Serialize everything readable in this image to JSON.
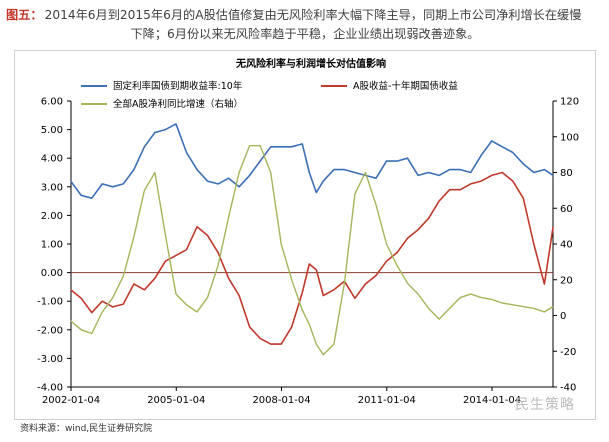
{
  "caption": {
    "label": "图五：",
    "line1": "2014年6月到2015年6月的A股估值修复由无风险利率大幅下降主导，同期上市公司净利增长在缓慢",
    "line2": "下降；6月份以来无风险率趋于平稳，企业业绩出现弱改善迹象。"
  },
  "source_note": "资料来源：wind,民生证券研究院",
  "watermark": "民生策略",
  "colors": {
    "bond_yield": "#3b6fb6",
    "equity_minus_bond": "#c0392b",
    "profit_growth": "#a4b55a",
    "zero_line": "#8a3b2e",
    "axis": "#000000"
  },
  "chart_data": {
    "type": "line",
    "title": "无风险利率与利润增长对估值影响",
    "x_tick_labels": [
      "2002-01-04",
      "2005-01-04",
      "2008-01-04",
      "2011-01-04",
      "2014-01-04"
    ],
    "x_range": [
      "2002-01-04",
      "2015-09-30"
    ],
    "y_left": {
      "min": -4,
      "max": 6,
      "ticks": [
        "-4.00",
        "-3.00",
        "-2.00",
        "-1.00",
        "0.00",
        "1.00",
        "2.00",
        "3.00",
        "4.00",
        "5.00",
        "6.00"
      ]
    },
    "y_right": {
      "min": -40,
      "max": 120,
      "ticks": [
        "-40",
        "-20",
        "0",
        "20",
        "40",
        "60",
        "80",
        "100",
        "120"
      ]
    },
    "legend_position": "top",
    "series": [
      {
        "name": "固定利率国债到期收益率:10年",
        "axis": "left",
        "color": "#3b6fb6",
        "x": [
          2002.0,
          2002.3,
          2002.6,
          2002.9,
          2003.2,
          2003.5,
          2003.8,
          2004.1,
          2004.4,
          2004.7,
          2005.0,
          2005.3,
          2005.6,
          2005.9,
          2006.2,
          2006.5,
          2006.8,
          2007.1,
          2007.4,
          2007.7,
          2008.0,
          2008.3,
          2008.6,
          2008.8,
          2009.0,
          2009.2,
          2009.5,
          2009.8,
          2010.1,
          2010.4,
          2010.7,
          2011.0,
          2011.3,
          2011.6,
          2011.9,
          2012.2,
          2012.5,
          2012.8,
          2013.1,
          2013.4,
          2013.7,
          2014.0,
          2014.3,
          2014.6,
          2014.9,
          2015.2,
          2015.5,
          2015.75
        ],
        "y": [
          3.2,
          2.7,
          2.6,
          3.1,
          3.0,
          3.1,
          3.6,
          4.4,
          4.9,
          5.0,
          5.2,
          4.2,
          3.6,
          3.2,
          3.1,
          3.3,
          3.0,
          3.4,
          3.9,
          4.4,
          4.4,
          4.4,
          4.5,
          3.5,
          2.8,
          3.2,
          3.6,
          3.6,
          3.5,
          3.4,
          3.3,
          3.9,
          3.9,
          4.0,
          3.4,
          3.5,
          3.4,
          3.6,
          3.6,
          3.5,
          4.1,
          4.6,
          4.4,
          4.2,
          3.8,
          3.5,
          3.6,
          3.4
        ]
      },
      {
        "name": "A股收益-十年期国债收益",
        "axis": "left",
        "color": "#c0392b",
        "x": [
          2002.0,
          2002.3,
          2002.6,
          2002.9,
          2003.2,
          2003.5,
          2003.8,
          2004.1,
          2004.4,
          2004.7,
          2005.0,
          2005.3,
          2005.6,
          2005.9,
          2006.2,
          2006.5,
          2006.8,
          2007.1,
          2007.4,
          2007.7,
          2008.0,
          2008.3,
          2008.6,
          2008.8,
          2009.0,
          2009.2,
          2009.5,
          2009.8,
          2010.1,
          2010.4,
          2010.7,
          2011.0,
          2011.3,
          2011.6,
          2011.9,
          2012.2,
          2012.5,
          2012.8,
          2013.1,
          2013.4,
          2013.7,
          2014.0,
          2014.3,
          2014.6,
          2014.9,
          2015.2,
          2015.5,
          2015.75
        ],
        "y": [
          -0.6,
          -0.9,
          -1.4,
          -1.0,
          -1.2,
          -1.1,
          -0.4,
          -0.6,
          -0.2,
          0.4,
          0.6,
          0.8,
          1.6,
          1.3,
          0.7,
          -0.2,
          -0.8,
          -1.9,
          -2.3,
          -2.5,
          -2.5,
          -1.9,
          -0.7,
          0.3,
          0.1,
          -0.8,
          -0.6,
          -0.3,
          -0.9,
          -0.4,
          -0.1,
          0.4,
          0.7,
          1.2,
          1.5,
          1.9,
          2.5,
          2.9,
          2.9,
          3.1,
          3.2,
          3.4,
          3.5,
          3.2,
          2.6,
          1.0,
          -0.4,
          1.6
        ]
      },
      {
        "name": "全部A股净利同比增速（右轴）",
        "axis": "right",
        "color": "#a4b55a",
        "x": [
          2002.0,
          2002.3,
          2002.6,
          2002.9,
          2003.2,
          2003.5,
          2003.8,
          2004.1,
          2004.4,
          2004.7,
          2005.0,
          2005.3,
          2005.6,
          2005.9,
          2006.2,
          2006.5,
          2006.8,
          2007.1,
          2007.4,
          2007.7,
          2008.0,
          2008.3,
          2008.6,
          2008.8,
          2009.0,
          2009.2,
          2009.5,
          2009.8,
          2010.1,
          2010.4,
          2010.7,
          2011.0,
          2011.3,
          2011.6,
          2011.9,
          2012.2,
          2012.5,
          2012.8,
          2013.1,
          2013.4,
          2013.7,
          2014.0,
          2014.3,
          2014.6,
          2014.9,
          2015.2,
          2015.5,
          2015.75
        ],
        "y": [
          -3,
          -8,
          -10,
          2,
          10,
          22,
          44,
          70,
          80,
          45,
          12,
          6,
          2,
          10,
          28,
          55,
          80,
          95,
          95,
          80,
          40,
          20,
          3,
          -5,
          -16,
          -22,
          -16,
          18,
          68,
          80,
          62,
          40,
          28,
          18,
          12,
          4,
          -2,
          4,
          10,
          12,
          10,
          9,
          7,
          6,
          5,
          4,
          2,
          5
        ]
      }
    ]
  }
}
